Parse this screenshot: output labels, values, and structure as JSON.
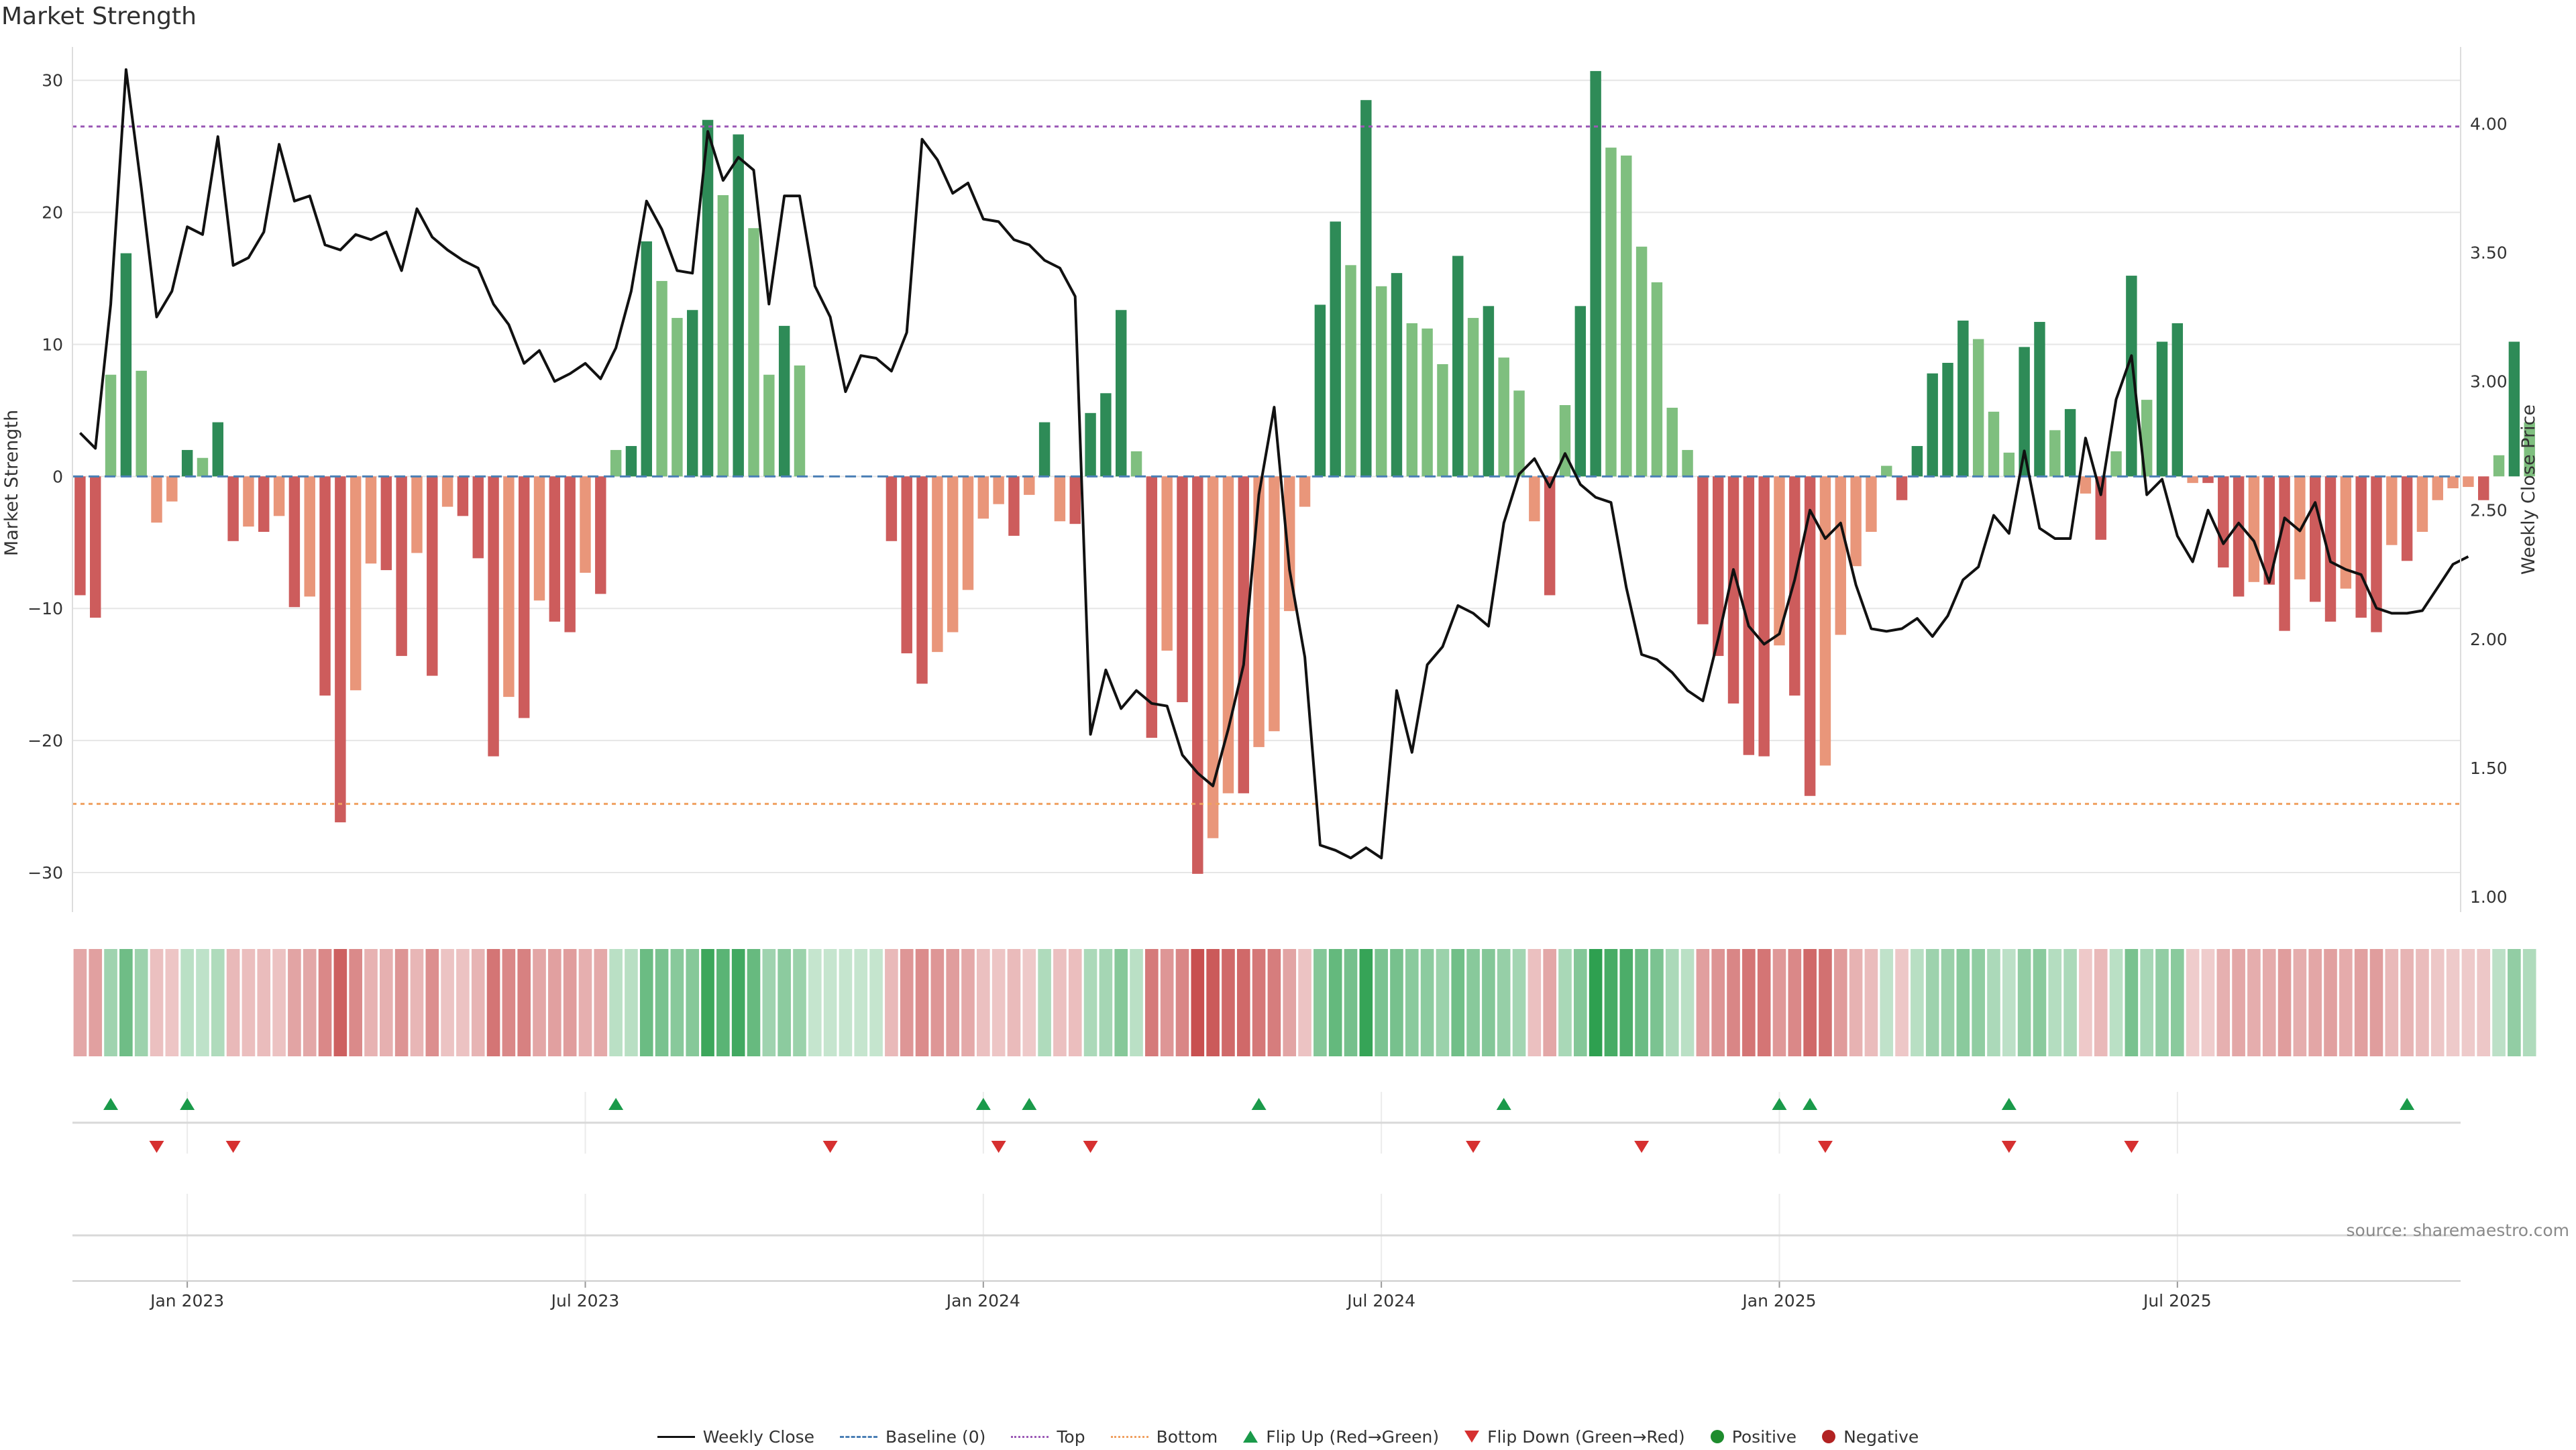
{
  "title": "Market Strength",
  "source": "source: sharemaestro.com",
  "colors": {
    "pos_dark": "#2e8b57",
    "pos_light": "#7fbf7f",
    "neg_dark": "#cd5c5c",
    "neg_light": "#e9967a",
    "price": "#111111",
    "baseline": "#4a7fb5",
    "top": "#9b59b6",
    "bottom": "#f0a060",
    "flip_up": "#1a9a4a",
    "flip_down": "#d63030",
    "positive": "#1e8c2e",
    "negative": "#b22222"
  },
  "legend": [
    {
      "label": "Weekly Close",
      "key": "line"
    },
    {
      "label": "Baseline (0)",
      "key": "dash"
    },
    {
      "label": "Top",
      "key": "dot-purple"
    },
    {
      "label": "Bottom",
      "key": "dot-orange"
    },
    {
      "label": "Flip Up (Red→Green)",
      "key": "tri-up"
    },
    {
      "label": "Flip Down (Green→Red)",
      "key": "tri-down"
    },
    {
      "label": "Positive",
      "key": "circle-pos"
    },
    {
      "label": "Negative",
      "key": "circle-neg"
    }
  ],
  "chart_data": {
    "type": "bar",
    "title": "Market Strength",
    "xlabel": "",
    "ylabel": "Market Strength",
    "y2label": "Weekly Close Price",
    "ylim": [
      -33,
      31
    ],
    "y2lim": [
      0.94,
      4.22
    ],
    "yticks": [
      30,
      20,
      10,
      0,
      -10,
      -20,
      -30
    ],
    "yticklabels": [
      "30",
      "20",
      "10",
      "0",
      "−10",
      "−20",
      "−30"
    ],
    "y2ticks": [
      4.0,
      3.5,
      3.0,
      2.5,
      2.0,
      1.5,
      1.0
    ],
    "y2ticklabels": [
      "4.00",
      "3.50",
      "3.00",
      "2.50",
      "2.00",
      "1.50",
      "1.00"
    ],
    "top_line": 26.5,
    "bottom_line": -24.8,
    "baseline": 0,
    "x_start_index": 0,
    "x_end_index": 156,
    "xticks": [
      {
        "index": 7,
        "label": "Jan 2023"
      },
      {
        "index": 33,
        "label": "Jul 2023"
      },
      {
        "index": 59,
        "label": "Jan 2024"
      },
      {
        "index": 85,
        "label": "Jul 2024"
      },
      {
        "index": 111,
        "label": "Jan 2025"
      },
      {
        "index": 137,
        "label": "Jul 2025"
      }
    ],
    "strength": [
      -9,
      -10.7,
      7.7,
      16.9,
      8,
      -3.5,
      -1.9,
      2,
      1.4,
      4.1,
      -4.9,
      -3.8,
      -4.2,
      -3,
      -9.9,
      -9.1,
      -16.6,
      -26.2,
      -16.2,
      -6.6,
      -7.1,
      -13.6,
      -5.8,
      -15.1,
      -2.3,
      -3,
      -6.2,
      -21.2,
      -16.7,
      -18.3,
      -9.4,
      -11,
      -11.8,
      -7.3,
      -8.9,
      2,
      2.3,
      17.8,
      14.8,
      12,
      12.6,
      27,
      21.3,
      25.9,
      18.8,
      7.7,
      11.4,
      8.4,
      0,
      0,
      0,
      0,
      0,
      -4.9,
      -13.4,
      -15.7,
      -13.3,
      -11.8,
      -8.6,
      -3.2,
      -2.1,
      -4.5,
      -1.4,
      4.1,
      -3.4,
      -3.6,
      4.8,
      6.3,
      12.6,
      1.9,
      -19.8,
      -13.2,
      -17.1,
      -30.1,
      -27.4,
      -24,
      -24,
      -20.5,
      -19.3,
      -10.2,
      -2.3,
      13,
      19.3,
      16,
      28.5,
      14.4,
      15.4,
      11.6,
      11.2,
      8.5,
      16.7,
      12,
      12.9,
      9,
      6.5,
      -3.4,
      -9,
      5.4,
      12.9,
      30.7,
      24.9,
      24.3,
      17.4,
      14.7,
      5.2,
      2,
      -11.2,
      -13.6,
      -17.2,
      -21.1,
      -21.2,
      -12.8,
      -16.6,
      -24.2,
      -21.9,
      -12,
      -6.8,
      -4.2,
      0.8,
      -1.8,
      2.3,
      7.8,
      8.6,
      11.8,
      10.4,
      4.9,
      1.8,
      9.8,
      11.7,
      3.5,
      5.1,
      -1.3,
      -4.8,
      1.9,
      15.2,
      5.8,
      10.2,
      11.6,
      -0.5,
      -0.5,
      -6.9,
      -9.1,
      -8,
      -8.2,
      -11.7,
      -7.8,
      -9.5,
      -11,
      -8.5,
      -10.7,
      -11.8,
      -5.2,
      -6.4,
      -4.2,
      -1.8,
      -0.9,
      -0.8,
      -1.8,
      1.6,
      10.2,
      4.1
    ],
    "weekly_close": [
      2.8,
      2.74,
      3.3,
      4.21,
      3.75,
      3.25,
      3.35,
      3.6,
      3.57,
      3.95,
      3.45,
      3.48,
      3.58,
      3.92,
      3.7,
      3.72,
      3.53,
      3.51,
      3.57,
      3.55,
      3.58,
      3.43,
      3.67,
      3.56,
      3.51,
      3.47,
      3.44,
      3.3,
      3.22,
      3.07,
      3.12,
      3.0,
      3.03,
      3.07,
      3.01,
      3.13,
      3.35,
      3.7,
      3.59,
      3.43,
      3.42,
      3.97,
      3.78,
      3.87,
      3.82,
      3.3,
      3.72,
      3.72,
      3.37,
      3.25,
      2.96,
      3.1,
      3.09,
      3.04,
      3.19,
      3.94,
      3.86,
      3.73,
      3.77,
      3.63,
      3.62,
      3.55,
      3.53,
      3.47,
      3.44,
      3.33,
      1.63,
      1.88,
      1.73,
      1.8,
      1.75,
      1.74,
      1.55,
      1.48,
      1.43,
      1.65,
      1.9,
      2.56,
      2.9,
      2.27,
      1.93,
      1.2,
      1.18,
      1.15,
      1.19,
      1.15,
      1.8,
      1.56,
      1.9,
      1.97,
      2.13,
      2.1,
      2.05,
      2.45,
      2.64,
      2.7,
      2.59,
      2.72,
      2.6,
      2.55,
      2.53,
      2.2,
      1.94,
      1.92,
      1.87,
      1.8,
      1.76,
      2.0,
      2.27,
      2.05,
      1.98,
      2.02,
      2.23,
      2.5,
      2.39,
      2.45,
      2.21,
      2.04,
      2.03,
      2.04,
      2.08,
      2.01,
      2.09,
      2.23,
      2.28,
      2.48,
      2.41,
      2.73,
      2.43,
      2.39,
      2.39,
      2.78,
      2.56,
      2.93,
      3.1,
      2.56,
      2.62,
      2.4,
      2.3,
      2.5,
      2.37,
      2.45,
      2.38,
      2.22,
      2.47,
      2.42,
      2.53,
      2.3,
      2.27,
      2.25,
      2.12,
      2.1,
      2.1,
      2.11,
      2.2,
      2.29,
      2.32
    ],
    "flip_up_indices": [
      2,
      7,
      35,
      59,
      62,
      77,
      93,
      111,
      113,
      126,
      152
    ],
    "flip_down_indices": [
      5,
      10,
      49,
      60,
      66,
      91,
      102,
      114,
      126,
      134
    ]
  }
}
